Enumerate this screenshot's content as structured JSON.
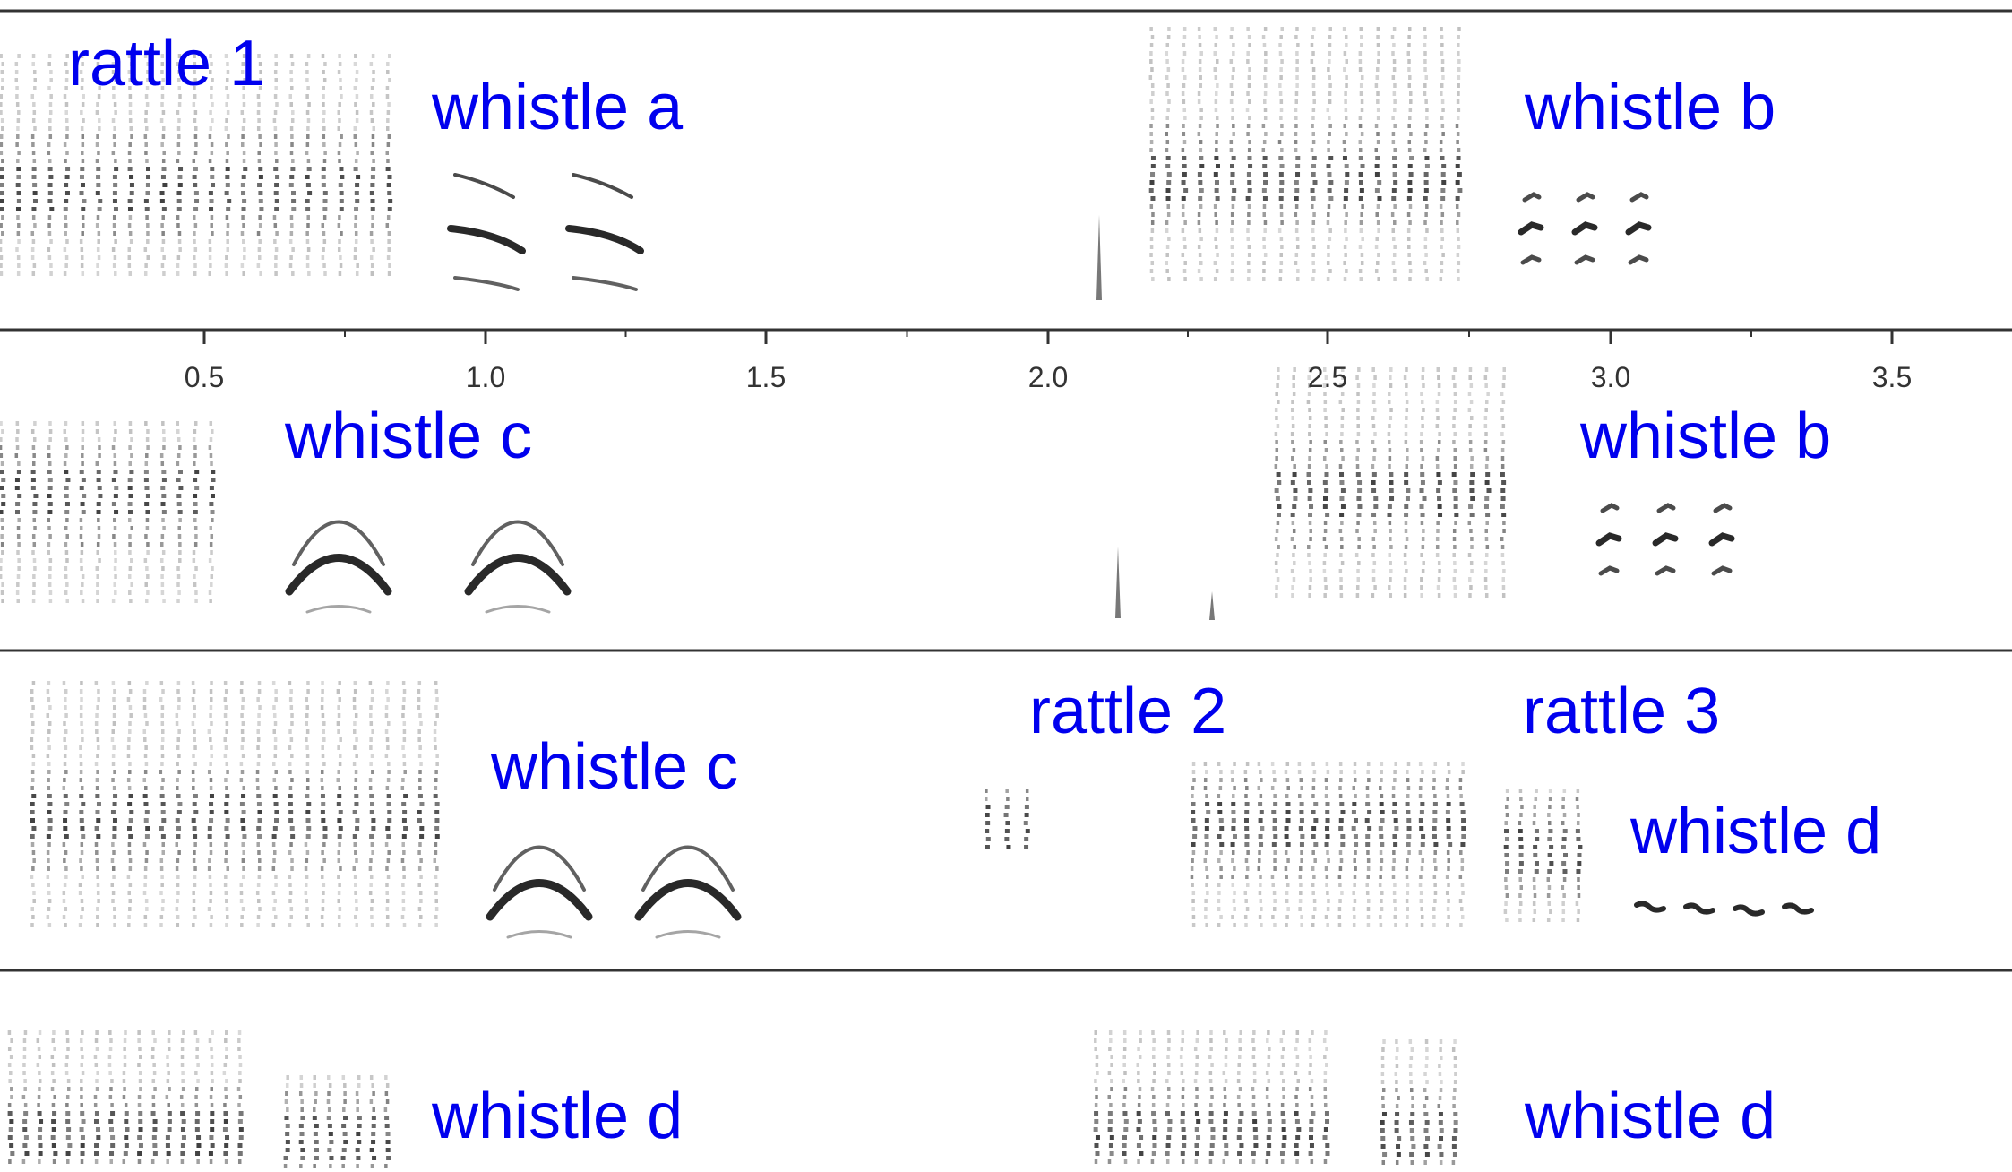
{
  "colors": {
    "label": "#0000ee",
    "rule": "#333333",
    "ink": "#1e1e1e"
  },
  "axis": {
    "tick_labels": [
      "0.5",
      "1.0",
      "1.5",
      "2.0",
      "2.5",
      "3.0",
      "3.5"
    ]
  },
  "panels": [
    {
      "labels": [
        "rattle 1",
        "whistle a",
        "whistle b"
      ]
    },
    {
      "labels": [
        "whistle c",
        "whistle b"
      ]
    },
    {
      "labels": [
        "whistle c",
        "rattle 2",
        "rattle 3",
        "whistle d"
      ]
    },
    {
      "labels": [
        "whistle d",
        "whistle d"
      ]
    }
  ]
}
